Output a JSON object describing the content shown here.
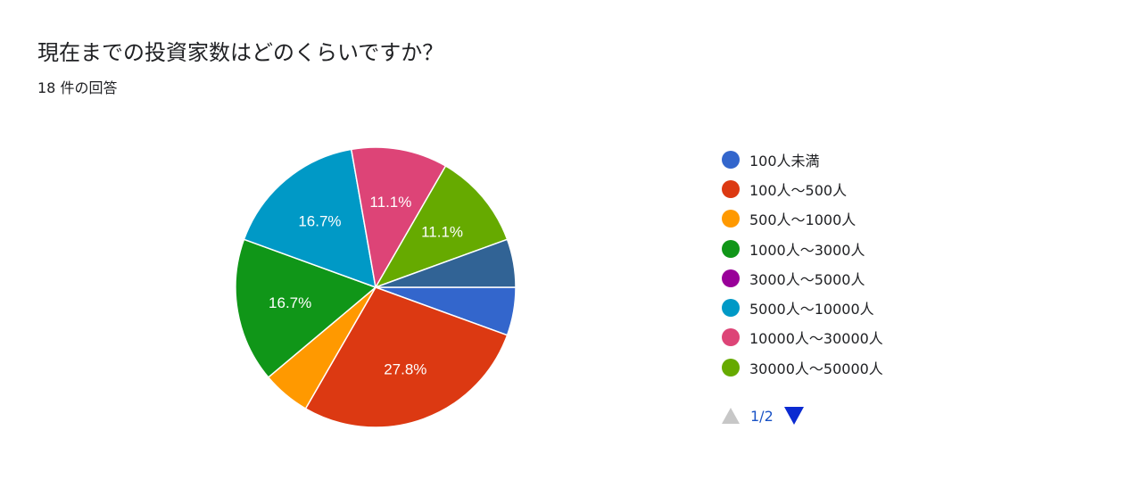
{
  "title": "現在までの投資家数はどのくらいですか？",
  "subtitle": "18 件の回答",
  "pager": {
    "label": "1/2"
  },
  "legend": [
    {
      "label": "100人未満",
      "color": "#3366cc"
    },
    {
      "label": "100人～500人",
      "color": "#dc3912"
    },
    {
      "label": "500人～1000人",
      "color": "#ff9900"
    },
    {
      "label": "1000人～3000人",
      "color": "#109618"
    },
    {
      "label": "3000人～5000人",
      "color": "#990099"
    },
    {
      "label": "5000人～10000人",
      "color": "#0099c6"
    },
    {
      "label": "10000人～30000人",
      "color": "#dd4477"
    },
    {
      "label": "30000人～50000人",
      "color": "#66aa00"
    }
  ],
  "chart_data": {
    "type": "pie",
    "total_responses": 18,
    "slices": [
      {
        "label": "100人未満",
        "count": 1,
        "percent": 5.6,
        "color": "#3366cc",
        "show_label": false
      },
      {
        "label": "100人～500人",
        "count": 5,
        "percent": 27.8,
        "color": "#dc3912",
        "show_label": true
      },
      {
        "label": "500人～1000人",
        "count": 1,
        "percent": 5.6,
        "color": "#ff9900",
        "show_label": false
      },
      {
        "label": "1000人～3000人",
        "count": 3,
        "percent": 16.7,
        "color": "#109618",
        "show_label": true
      },
      {
        "label": "3000人～5000人",
        "count": 0,
        "percent": 0,
        "color": "#990099",
        "show_label": false
      },
      {
        "label": "5000人～10000人",
        "count": 3,
        "percent": 16.7,
        "color": "#0099c6",
        "show_label": true
      },
      {
        "label": "10000人～30000人",
        "count": 2,
        "percent": 11.1,
        "color": "#dd4477",
        "show_label": true
      },
      {
        "label": "30000人～50000人",
        "count": 2,
        "percent": 11.1,
        "color": "#66aa00",
        "show_label": true
      },
      {
        "label": "",
        "count": 1,
        "percent": 5.6,
        "color": "#316395",
        "show_label": false
      }
    ]
  }
}
